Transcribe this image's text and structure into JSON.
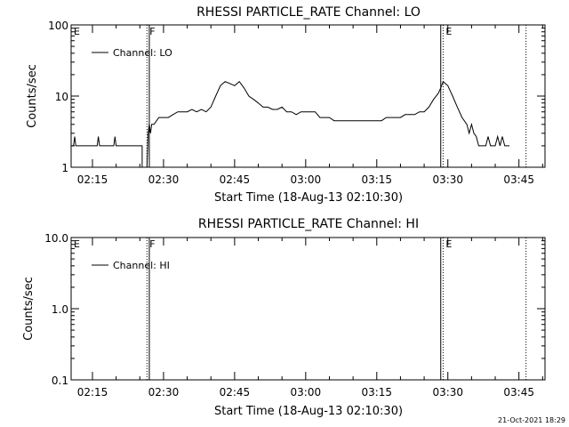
{
  "chart_data": [
    {
      "type": "line",
      "title": "RHESSI PARTICLE_RATE Channel: LO",
      "xlabel": "Start Time (18-Aug-13 02:10:30)",
      "ylabel": "Counts/sec",
      "yscale": "log",
      "ylim": [
        1,
        100
      ],
      "xlim": [
        "02:10:30",
        "03:50:30"
      ],
      "x_ticks": [
        "02:15",
        "02:30",
        "02:45",
        "03:00",
        "03:15",
        "03:30",
        "03:45"
      ],
      "y_ticks": [
        "1",
        "10",
        "100"
      ],
      "legend": {
        "entries": [
          "Channel: LO"
        ],
        "placement": "top-left"
      },
      "markers": [
        {
          "label": "E",
          "time": "02:10:30",
          "style": "dotted"
        },
        {
          "label": "F",
          "time": "02:26:30",
          "style": "dotted"
        },
        {
          "label": "",
          "time": "02:27:00",
          "style": "solid"
        },
        {
          "label": "",
          "time": "03:28:30",
          "style": "solid"
        },
        {
          "label": "E",
          "time": "03:29:00",
          "style": "dotted"
        },
        {
          "label": "",
          "time": "03:46:30",
          "style": "dotted"
        }
      ],
      "series": [
        {
          "name": "Channel: LO",
          "x": [
            "02:10:30",
            "02:11:00",
            "02:11:15",
            "02:11:30",
            "02:16:00",
            "02:16:15",
            "02:16:30",
            "02:19:30",
            "02:19:45",
            "02:20:00",
            "02:25:30",
            "02:25:30",
            "02:26:30",
            "02:26:45",
            "02:27:00",
            "02:27:15",
            "02:27:30",
            "02:28:00",
            "02:29:00",
            "02:30:00",
            "02:31:00",
            "02:32:00",
            "02:33:00",
            "02:34:00",
            "02:35:00",
            "02:36:00",
            "02:37:00",
            "02:38:00",
            "02:39:00",
            "02:40:00",
            "02:41:00",
            "02:42:00",
            "02:43:00",
            "02:44:00",
            "02:45:00",
            "02:46:00",
            "02:47:00",
            "02:48:00",
            "02:49:00",
            "02:50:00",
            "02:51:00",
            "02:52:00",
            "02:53:00",
            "02:54:00",
            "02:55:00",
            "02:56:00",
            "02:57:00",
            "02:58:00",
            "02:59:00",
            "03:00:00",
            "03:01:00",
            "03:02:00",
            "03:03:00",
            "03:04:00",
            "03:05:00",
            "03:06:00",
            "03:07:00",
            "03:08:00",
            "03:09:00",
            "03:10:00",
            "03:11:00",
            "03:12:00",
            "03:13:00",
            "03:14:00",
            "03:15:00",
            "03:16:00",
            "03:17:00",
            "03:18:00",
            "03:19:00",
            "03:20:00",
            "03:21:00",
            "03:22:00",
            "03:23:00",
            "03:24:00",
            "03:25:00",
            "03:26:00",
            "03:27:00",
            "03:28:00",
            "03:28:30",
            "03:29:00",
            "03:30:00",
            "03:31:00",
            "03:32:00",
            "03:33:00",
            "03:34:00",
            "03:34:30",
            "03:35:00",
            "03:35:30",
            "03:36:00",
            "03:36:30",
            "03:37:00",
            "03:38:00",
            "03:38:30",
            "03:39:00",
            "03:40:00",
            "03:40:30",
            "03:41:00",
            "03:41:30",
            "03:42:00",
            "03:42:30",
            "03:43:00"
          ],
          "y": [
            2,
            2,
            2.7,
            2,
            2,
            2.7,
            2,
            2,
            2.7,
            2,
            2,
            1,
            1,
            3,
            4,
            3,
            4,
            4,
            5,
            5,
            5,
            5.5,
            6,
            6,
            6,
            6.5,
            6,
            6.5,
            6,
            7,
            10,
            14,
            16,
            15,
            14,
            16,
            13,
            10,
            9,
            8,
            7,
            7,
            6.5,
            6.5,
            7,
            6,
            6,
            5.5,
            6,
            6,
            6,
            6,
            5,
            5,
            5,
            4.5,
            4.5,
            4.5,
            4.5,
            4.5,
            4.5,
            4.5,
            4.5,
            4.5,
            4.5,
            4.5,
            5,
            5,
            5,
            5,
            5.5,
            5.5,
            5.5,
            6,
            6,
            7,
            9,
            11,
            13,
            16,
            14,
            10,
            7,
            5,
            4,
            3,
            4,
            3,
            2.7,
            2,
            2,
            2,
            2.7,
            2,
            2,
            2.7,
            2,
            2.7,
            2,
            2,
            2
          ]
        }
      ]
    },
    {
      "type": "line",
      "title": "RHESSI PARTICLE_RATE Channel: HI",
      "xlabel": "Start Time (18-Aug-13 02:10:30)",
      "ylabel": "Counts/sec",
      "yscale": "log",
      "ylim": [
        0.1,
        10
      ],
      "xlim": [
        "02:10:30",
        "03:50:30"
      ],
      "x_ticks": [
        "02:15",
        "02:30",
        "02:45",
        "03:00",
        "03:15",
        "03:30",
        "03:45"
      ],
      "y_ticks": [
        "0.1",
        "1.0",
        "10.0"
      ],
      "legend": {
        "entries": [
          "Channel: HI"
        ],
        "placement": "top-left"
      },
      "markers": [
        {
          "label": "E",
          "time": "02:10:30",
          "style": "dotted"
        },
        {
          "label": "F",
          "time": "02:26:30",
          "style": "dotted"
        },
        {
          "label": "",
          "time": "02:27:00",
          "style": "solid"
        },
        {
          "label": "",
          "time": "03:28:30",
          "style": "solid"
        },
        {
          "label": "E",
          "time": "03:29:00",
          "style": "dotted"
        },
        {
          "label": "",
          "time": "03:46:30",
          "style": "dotted"
        }
      ],
      "series": [
        {
          "name": "Channel: HI",
          "x": [],
          "y": []
        }
      ]
    }
  ],
  "footer": {
    "timestamp": "21-Oct-2021 18:29"
  }
}
